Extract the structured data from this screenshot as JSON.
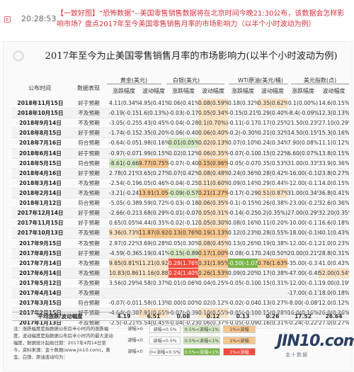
{
  "header": {
    "time": "20:28:53",
    "message": "【一致好图】“恐怖数据”--美国零售销售数据将在北京时间今晚21:30公布，该数据会怎样影响市场？盘点2017年至今美国零售销售月率的市场影响力（以半个小时波动为例）"
  },
  "card": {
    "title": "2017年至今为止美国零售销售月率的市场影响力(以半个小时波动为例)",
    "col_date": "公布时间",
    "col_expect": "数据表现",
    "groups": [
      "黄金(美元)",
      "白银(美元)",
      "WTI原油(美元/桶)",
      "美元指数(点)"
    ],
    "sub_change": "涨跌幅度",
    "sub_volatility": "波动幅度",
    "avg_label": "平均涨跌/波动幅度",
    "avg_values": [
      "4.19",
      "6.51",
      "0.08",
      "0.12",
      "0.13",
      "0.26",
      "17.52",
      "26.64"
    ],
    "note": "注：涨跌幅度是指数据公布后半小时内的涨跌幅度，波动幅度是指数据公布后半小时内的最大波动幅度，数据统计起始日期：2017年4月14日至今，资料来源：金十数据(www.jin10.com)，黄金、白银、原油波动均为：",
    "legend": [
      [
        "波幅>0",
        "波幅<0.5%",
        "0.5%<波幅<1%",
        "1%<波幅"
      ],
      [
        "波幅<0",
        "波幅<0.5%",
        "0.5%<波幅<1%",
        "1%<波幅"
      ],
      [
        "波幅<0",
        "0<涨幅<0.5%",
        "0.5%<涨幅<1%",
        "1%<涨幅"
      ]
    ],
    "brand": "JIN10.com",
    "brand_sub": "金十数据"
  },
  "rows": [
    [
      "2018年11月15日",
      "好于预期",
      "4.11(0.34%)",
      "4.95(0.41%)",
      "0.06(0.41%)",
      "0.08(0.59%)",
      "0.18(0.32%)",
      "0.35(0.62%)",
      "0.1(0.00%)",
      "14.6(0.15%)"
    ],
    [
      "2018年10月15日",
      "不及预期",
      "-0.19(-0.15%)",
      "1.6(0.13%)",
      "-0.03(-0.17%)",
      "0.05(0.34%)",
      "-0.15(0.21%)",
      "0.29(0.40%)",
      "-8.4(-0.09%)",
      "12.3(0.13%)"
    ],
    [
      "2018年9月14日",
      "不及预期",
      "-3.05(-0.25%)",
      "5.43(0.45%)",
      "-0.04(-0.28%)",
      "0.1(0.70%)",
      "-0.11(-0.17%)",
      "0.17(0.25%)",
      "21.50(0.23%)",
      "27.10(0.29%)"
    ],
    [
      "2018年8月15日",
      "好于预期",
      "-1.74(-0.15%)",
      "2.35(0.20%)",
      "-0.06(-0.40%)",
      "0.06(0.40%)",
      "-0.2(-0.30%)",
      "0.21(0.32%)",
      "14.50(0.15%)",
      "15.3(0.16%)"
    ],
    [
      "2018年7月16日",
      "符合预期",
      "-0.64(-0.05%)",
      "1.98(0.16%)",
      "0.01(0.05%)",
      "0.02(0.13%)",
      "0.07(0.10%)",
      "0.24(0.34%)",
      "7.90(0.08%)",
      "11.1(0.12%)"
    ],
    [
      "2018年6月14日",
      "好于预期",
      "-0.97(-0.07%)",
      "1.99(0.15%)",
      "0.02(0.12%)",
      "0.06(0.35%)",
      "-0.07(-0.10%)",
      "0.15(0.22%)",
      "6.60(0.07%)",
      "13.8(0.15%)"
    ],
    [
      "2018年5月15日",
      "符合预期",
      "-8.61(-0.66%)",
      "9.77(0.75%)",
      "-0.07(-0.40%)",
      "0.15(0.96%)",
      "-0.05(-0.07%)",
      "0.35(0.53%)",
      "31.00(0.33%)",
      "33.9(0.36%)"
    ],
    [
      "2018年4月16日",
      "好于预期",
      "2.78(0.21%)",
      "3.65(0.27%)",
      "0.07(0.42%)",
      "0.08(0.48%)",
      "0.24(0.36%)",
      "0.28(0.42%)",
      "-16.00(-0.18%)",
      "23.8(0.27%)"
    ],
    [
      "2018年3月14日",
      "不及预期",
      "-2.54(-0.19%)",
      "6.05(0.46%)",
      "-0.04(-0.25%)",
      "0.11(0.60%)",
      "0.09(0.14%)",
      "0.29(0.44%)",
      "-12.00(-0.13%)",
      "14.0(0.15%)"
    ],
    [
      "2018年2月14日",
      "不及预期",
      "-3.21(-0.24%)",
      "13.91(1.05%)",
      "-0.09(-0.57%)",
      "0.21(1.27%)",
      "-0.17(-0.29%)",
      "0.51(0.87%)",
      "31.00(0.34%)",
      "36.8(0.41%)"
    ],
    [
      "2018年1月12日",
      "符合预期",
      "-5.05(-0.38%)",
      "9.59(0.72%)",
      "-0.03(-0.18%)",
      "0.06(0.35%)",
      "-0.1(-0.15%)",
      "0.26(0.38%)",
      "-23.00(-0.25%)",
      "32.6(0.36%)"
    ],
    [
      "2017年12月14日",
      "好于预期",
      "-2.66(-0.21%)",
      "3.68(0.29%)",
      "-0.01(-0.07%)",
      "0.05(0.31%)",
      "-0.14(-0.25%)",
      "0.2(0.35%)",
      "27.00(0.29%)",
      "32.20(0.35%)"
    ],
    [
      "2017年11月15日",
      "好于预期",
      "0.65(0.05%)",
      "4.44(0.35%)",
      "-0.02(-0.12%)",
      "0.05(0.30%)",
      "0.08(0.16%)",
      "0.11(0.20%)",
      "-10.00(-0.11%)",
      "16.6(0.18%)"
    ],
    [
      "2017年10月13日",
      "不及预期",
      "9.36(0.73%)",
      "11.87(0.92%)",
      "0.13(0.76%)",
      "0.19(1.13%)",
      "0.12(0.23%)",
      "0.28(0.55%)",
      "-18.00(-0.19%)",
      "40.1(0.43%)"
    ],
    [
      "2017年9月15日",
      "不及预期",
      "2.97(0.22%)",
      "3.69(0.28%)",
      "0.05(0.30%)",
      "0.08(0.45%)",
      "0.13(0.26%)",
      "0.19(0.38%)",
      "-12.00(-0.13%)",
      "21.0(0.23%)"
    ],
    [
      "2017年8月15日",
      "好于预期",
      "-4.59(-0.36%)",
      "5.19(0.41%)",
      "-0.15(-0.89%)",
      "0.17(1.00%)",
      "-0.08(-0.17%)",
      "0.24(0.50%)",
      "20.00(0.21%)",
      "28.8(0.31%)"
    ],
    [
      "2017年7月14日",
      "不及预期",
      "9.85(0.81%)",
      "11.21(0.92%)",
      "0.28(1.76%)",
      "0.31(1.95%)",
      "-0.50(-1.07%)",
      "0.76(1.63%)",
      "-35.00(-0.37%)",
      "41.0(0.43%)"
    ],
    [
      "2017年6月14日",
      "不及预期",
      "10.83(0.86%)",
      "11.16(0.88%)",
      "0.24(1.40%)",
      "0.26(1.53%)",
      "0.09(0.20%)",
      "0.17(0.38%)",
      "-47.00(-0.48%)",
      "52.00(0.54%)"
    ],
    [
      "2017年5月12日",
      "不及预期",
      "3.56(0.29%)",
      "4.58(0.37%)",
      "0.01(0.06%)",
      "0.04(0.25%)",
      "-0.05(-0.10%)",
      "0.15(0.31%)",
      "-12.00(-0.12%)",
      "19.00(0.19%)"
    ],
    [
      "2017年4月14日",
      "不及预期",
      "",
      "",
      "",
      "",
      "",
      "",
      "-17.00(-0.17%)",
      "18.0(0.18%)"
    ],
    [
      "2017年3月15日",
      "符合预期",
      "-0.07(-0.01%)",
      "1.58(0.13%)",
      "0.00(0.00%)",
      "0.02(0.12%)",
      "-0.02(-0.04%)",
      "0.13(0.27%)",
      "-8.00(-0.08%)",
      "12.0(0.12%)"
    ],
    [
      "2017年2月15日",
      "好于预期",
      "-4.64(-0.38%)",
      "7.91(0.65%)",
      "-0.07(-0.39%)",
      "0.10(0.55%)",
      "-0.05(-0.10%)",
      "0.15(0.28%)",
      "16.0(0.16%)",
      "26.0(0.26%)"
    ],
    [
      "2017年1月13日",
      "不及预期",
      "-2.5(-0.21%)",
      "5.54(0.45%)",
      "-0.04(-0.23%)",
      "0.06(0.37%)",
      "-0.05(-0.09%)",
      "0.16(0.31%)",
      "-0.24(-0.22%)",
      "27.0(0.27%)"
    ]
  ],
  "highlight_colors": {
    "red": "#f04a3c",
    "green": "#7ab648",
    "light_green": "#d5e9c2",
    "orange": "#f7c68d",
    "light_orange": "#fbe3c6"
  }
}
